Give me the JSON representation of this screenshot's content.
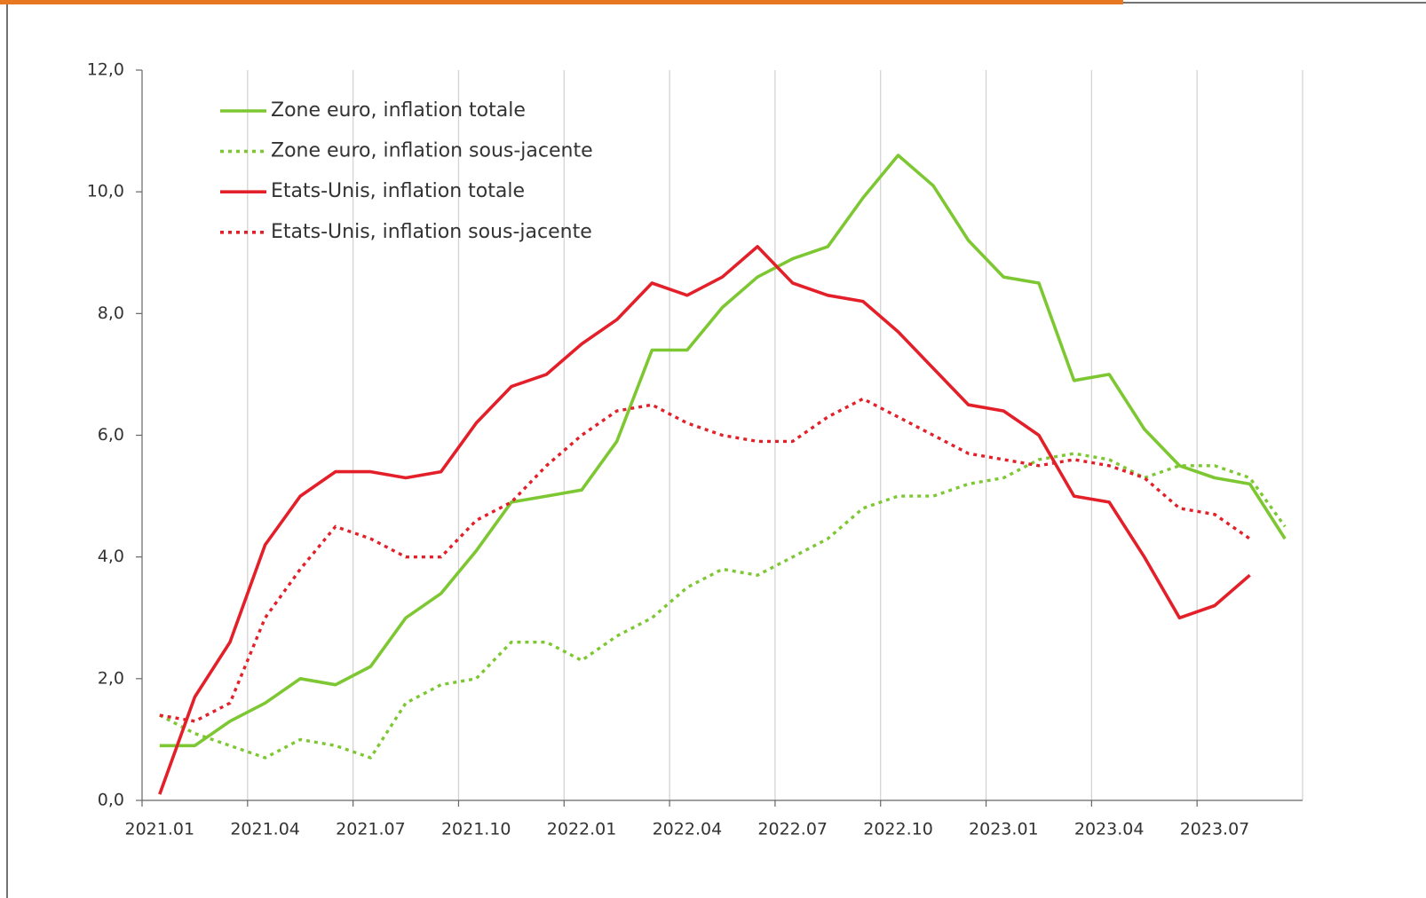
{
  "chart_data": {
    "type": "line",
    "categories": [
      "2021.01",
      null,
      null,
      "2021.04",
      null,
      null,
      "2021.07",
      null,
      null,
      "2021.10",
      null,
      null,
      "2022.01",
      null,
      null,
      "2022.04",
      null,
      null,
      "2022.07",
      null,
      null,
      "2022.10",
      null,
      null,
      "2023.01",
      null,
      null,
      "2023.04",
      null,
      null,
      "2023.07",
      null,
      null
    ],
    "series": [
      {
        "name": "Zone euro, inflation totale",
        "color": "#7dc832",
        "dashed": false,
        "values": [
          0.9,
          0.9,
          1.3,
          1.6,
          2.0,
          1.9,
          2.2,
          3.0,
          3.4,
          4.1,
          4.9,
          5.0,
          5.1,
          5.9,
          7.4,
          7.4,
          8.1,
          8.6,
          8.9,
          9.1,
          9.9,
          10.6,
          10.1,
          9.2,
          8.6,
          8.5,
          6.9,
          7.0,
          6.1,
          5.5,
          5.3,
          5.2,
          4.3
        ]
      },
      {
        "name": "Zone euro, inflation sous-jacente",
        "color": "#7dc832",
        "dashed": true,
        "values": [
          1.4,
          1.1,
          0.9,
          0.7,
          1.0,
          0.9,
          0.7,
          1.6,
          1.9,
          2.0,
          2.6,
          2.6,
          2.3,
          2.7,
          3.0,
          3.5,
          3.8,
          3.7,
          4.0,
          4.3,
          4.8,
          5.0,
          5.0,
          5.2,
          5.3,
          5.6,
          5.7,
          5.6,
          5.3,
          5.5,
          5.5,
          5.3,
          4.5
        ]
      },
      {
        "name": "Etats-Unis, inflation totale",
        "color": "#e3202a",
        "dashed": false,
        "values": [
          0.1,
          1.7,
          2.6,
          4.2,
          5.0,
          5.4,
          5.4,
          5.3,
          5.4,
          6.2,
          6.8,
          7.0,
          7.5,
          7.9,
          8.5,
          8.3,
          8.6,
          9.1,
          8.5,
          8.3,
          8.2,
          7.7,
          7.1,
          6.5,
          6.4,
          6.0,
          5.0,
          4.9,
          4.0,
          3.0,
          3.2,
          3.7,
          null
        ]
      },
      {
        "name": "Etats-Unis, inflation sous-jacente",
        "color": "#e3202a",
        "dashed": true,
        "values": [
          1.4,
          1.3,
          1.6,
          3.0,
          3.8,
          4.5,
          4.3,
          4.0,
          4.0,
          4.6,
          4.9,
          5.5,
          6.0,
          6.4,
          6.5,
          6.2,
          6.0,
          5.9,
          5.9,
          6.3,
          6.6,
          6.3,
          6.0,
          5.7,
          5.6,
          5.5,
          5.6,
          5.5,
          5.3,
          4.8,
          4.7,
          4.3,
          null
        ]
      }
    ],
    "ylim": [
      0,
      12
    ],
    "yticks": [
      {
        "value": 0,
        "label": "0,0"
      },
      {
        "value": 2,
        "label": "2,0"
      },
      {
        "value": 4,
        "label": "4,0"
      },
      {
        "value": 6,
        "label": "6,0"
      },
      {
        "value": 8,
        "label": "8,0"
      },
      {
        "value": 10,
        "label": "10,0"
      },
      {
        "value": 12,
        "label": "12,0"
      }
    ],
    "grid": true,
    "legend": "upper-left"
  }
}
